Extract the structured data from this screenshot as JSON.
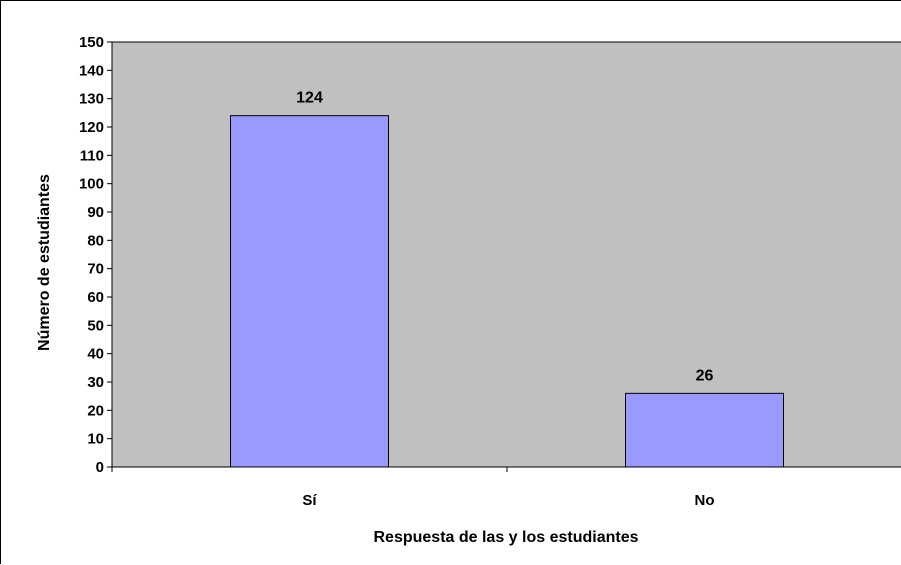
{
  "chart_data": {
    "type": "bar",
    "title": "",
    "categories": [
      "Sí",
      "No"
    ],
    "values": [
      124,
      26
    ],
    "data_labels": [
      "124",
      "26"
    ],
    "xlabel": "Respuesta de las y los estudiantes",
    "ylabel": "Número de estudiantes",
    "ylim": [
      0,
      150
    ],
    "yticks": [
      0,
      10,
      20,
      30,
      40,
      50,
      60,
      70,
      80,
      90,
      100,
      110,
      120,
      130,
      140,
      150
    ],
    "grid": false,
    "legend": "none",
    "colors": {
      "bar_fill": "#9999ff",
      "bar_stroke": "#000000",
      "plot_background": "#c0c0c0",
      "axis": "#000000"
    }
  }
}
